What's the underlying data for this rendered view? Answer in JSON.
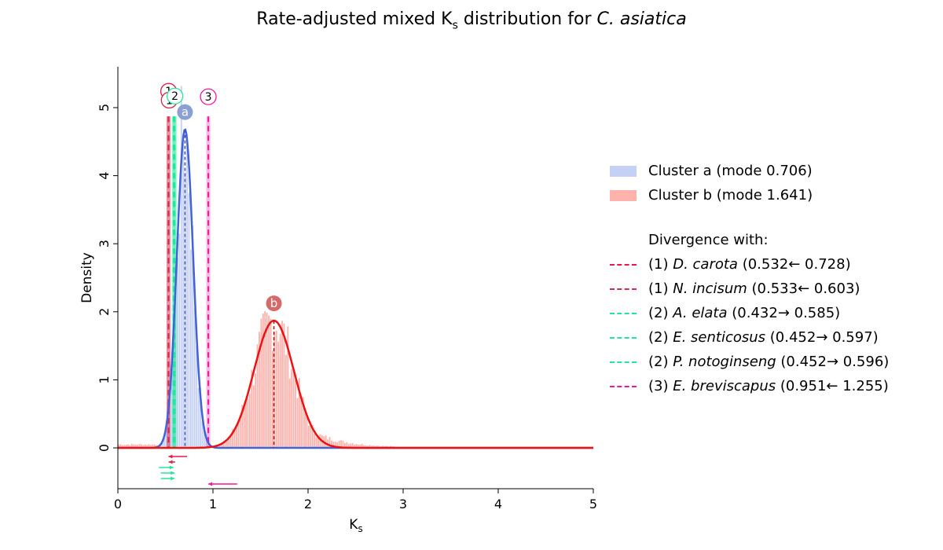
{
  "title": {
    "prefix": "Rate-adjusted mixed K",
    "sub": "s",
    "middle": " distribution for ",
    "species": "C.  asiatica"
  },
  "chart_data": {
    "type": "histogram+density",
    "xlabel": "K",
    "xlabel_sub": "s",
    "ylabel": "Density",
    "xlim": [
      0,
      5
    ],
    "ylim": [
      -0.6,
      5.6
    ],
    "xticks": [
      "0",
      "1",
      "2",
      "3",
      "4",
      "5"
    ],
    "yticks": [
      "0",
      "1",
      "2",
      "3",
      "4",
      "5"
    ],
    "clusters": [
      {
        "id": "a",
        "legend": "Cluster a (mode 0.706)",
        "mode": 0.706,
        "sd": 0.085,
        "peak": 4.68,
        "line_color": "#4162d8",
        "fill_color": "#c4d0f4",
        "marker_color": "#8a9fd2"
      },
      {
        "id": "b",
        "legend": "Cluster b (mode 1.641)",
        "mode": 1.641,
        "sd": 0.21,
        "peak": 1.87,
        "line_color": "#ee1111",
        "fill_color": "#ffb1ab",
        "marker_color": "#d46a6a"
      }
    ],
    "legend_header": "Divergence with:",
    "divergences": [
      {
        "label": "(1)",
        "species": "D.  carota",
        "range": "(0.532← 0.728)",
        "value": 0.532,
        "from": 0.728,
        "color": "#e8194a",
        "circle_no": "1"
      },
      {
        "label": "(1)",
        "species": "N.  incisum",
        "range": "(0.533← 0.603)",
        "value": 0.533,
        "from": 0.603,
        "color": "#d6294c",
        "circle_no": "1"
      },
      {
        "label": "(2)",
        "species": "A.  elata",
        "range": "(0.432→ 0.585)",
        "value": 0.585,
        "from": 0.432,
        "color": "#22e79a",
        "circle_no": "2"
      },
      {
        "label": "(2)",
        "species": "E.  senticosus",
        "range": "(0.452→ 0.597)",
        "value": 0.597,
        "from": 0.452,
        "color": "#22e79a",
        "circle_no": "2"
      },
      {
        "label": "(2)",
        "species": "P.  notoginseng",
        "range": "(0.452→ 0.596)",
        "value": 0.596,
        "from": 0.452,
        "color": "#22e79a",
        "circle_no": "2"
      },
      {
        "label": "(3)",
        "species": "E.  breviscapus",
        "range": "(0.951← 1.255)",
        "value": 0.951,
        "from": 1.255,
        "color": "#f0169e",
        "circle_no": "3"
      }
    ],
    "legend_location": "right"
  }
}
